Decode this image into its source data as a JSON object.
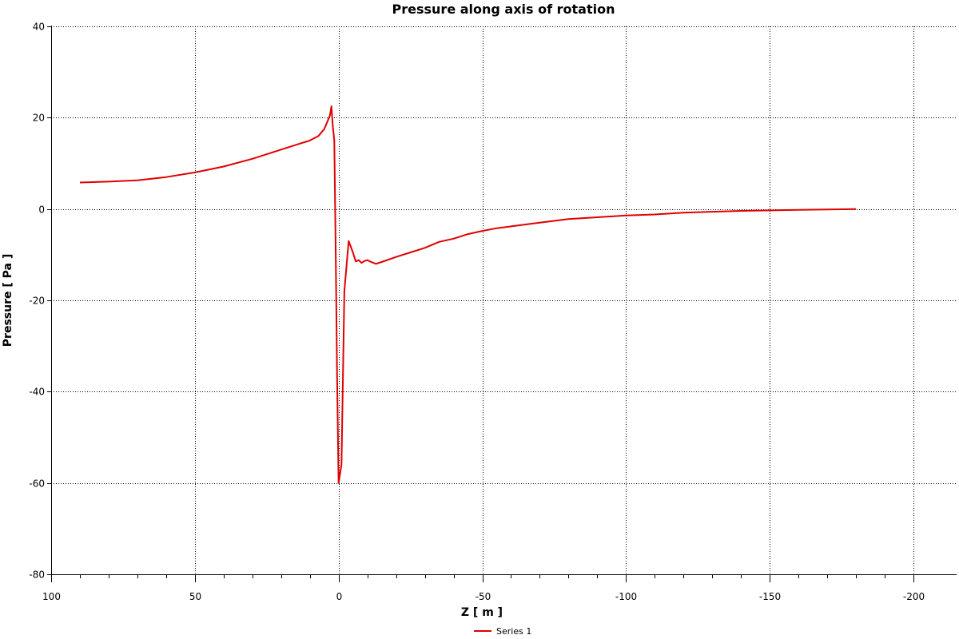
{
  "chart_data": {
    "type": "line",
    "title": "Pressure along axis of rotation",
    "xlabel": "Z [ m ]",
    "ylabel": "Pressure [ Pa ]",
    "xlim": [
      100,
      -200
    ],
    "ylim": [
      -80,
      40
    ],
    "x_reversed": true,
    "grid": true,
    "legend_position": "bottom",
    "x_ticks": [
      100,
      50,
      0,
      -50,
      -100,
      -150,
      -200
    ],
    "x_tick_labels": [
      "100",
      "50",
      "0",
      "-50",
      "-100",
      "-150",
      "-200"
    ],
    "y_ticks": [
      40,
      20,
      0,
      -20,
      -40,
      -60,
      -80
    ],
    "y_tick_labels": [
      "40",
      "20",
      "0",
      "-20",
      "-40",
      "-60",
      "-80"
    ],
    "series": [
      {
        "name": "Series 1",
        "color": "#e00000",
        "x": [
          90,
          80,
          70,
          60,
          50,
          40,
          30,
          20,
          15,
          10,
          7,
          5,
          3,
          2.5,
          2,
          1.5,
          1.0,
          0.5,
          0,
          -1,
          -2,
          -3.5,
          -5,
          -6,
          -7,
          -8,
          -9,
          -10,
          -11,
          -13,
          -15,
          -20,
          -25,
          -30,
          -35,
          -40,
          -45,
          -50,
          -55,
          -60,
          -70,
          -80,
          -90,
          -100,
          -110,
          -120,
          -130,
          -140,
          -150,
          -160,
          -170,
          -180
        ],
        "y": [
          5.8,
          6.0,
          6.3,
          7.0,
          8.0,
          9.3,
          11.0,
          13.0,
          14.0,
          15.0,
          16.0,
          17.5,
          20.5,
          22.5,
          18.0,
          15.0,
          -10.0,
          -38.0,
          -60.0,
          -56.0,
          -18.0,
          -7.0,
          -9.5,
          -11.5,
          -11.2,
          -11.8,
          -11.4,
          -11.2,
          -11.5,
          -12.0,
          -11.6,
          -10.5,
          -9.5,
          -8.5,
          -7.2,
          -6.5,
          -5.5,
          -4.8,
          -4.2,
          -3.8,
          -3.0,
          -2.2,
          -1.8,
          -1.4,
          -1.2,
          -0.8,
          -0.6,
          -0.4,
          -0.3,
          -0.2,
          -0.1,
          0.0
        ]
      }
    ]
  }
}
